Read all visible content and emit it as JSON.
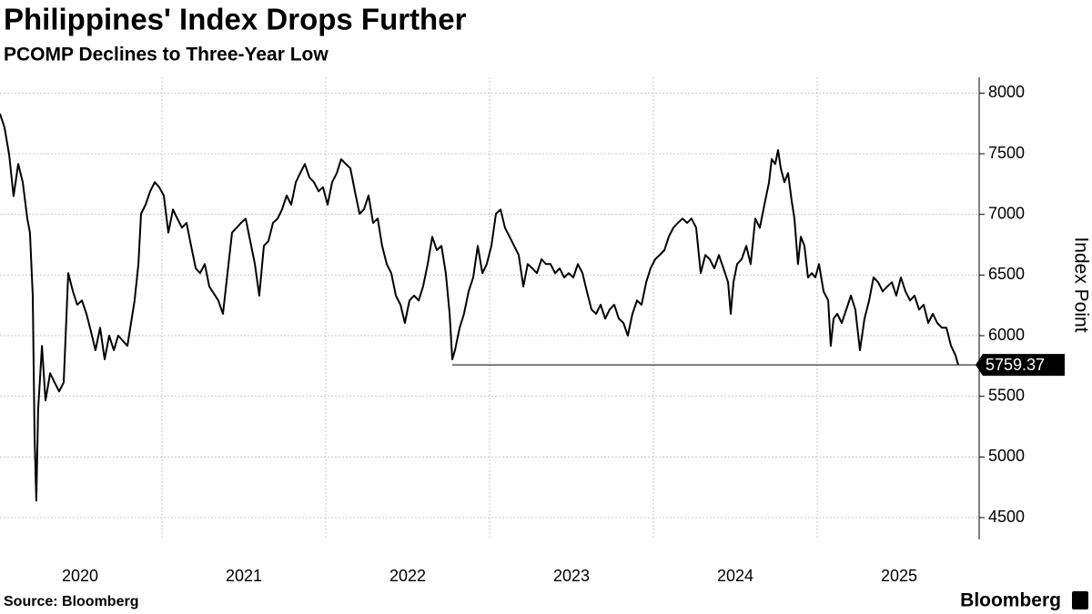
{
  "chart_data": {
    "type": "line",
    "title": "Philippines' Index Drops Further",
    "subtitle": "PCOMP Declines to Three-Year Low",
    "y_label": "Index Point",
    "source": "Source: Bloomberg",
    "brand": "Bloomberg",
    "color": "#000000",
    "grid": true,
    "xlim": [
      2020,
      2026
    ],
    "xgrid": [
      2021,
      2022,
      2023,
      2024,
      2025
    ],
    "xticks": [
      {
        "value": 2020.5,
        "label": "2020"
      },
      {
        "value": 2021.5,
        "label": "2021"
      },
      {
        "value": 2022.5,
        "label": "2022"
      },
      {
        "value": 2023.5,
        "label": "2023"
      },
      {
        "value": 2024.5,
        "label": "2024"
      },
      {
        "value": 2025.5,
        "label": "2025"
      }
    ],
    "ylim": [
      4320,
      8130
    ],
    "yticks": [
      4500,
      5000,
      5500,
      6000,
      6500,
      7000,
      7500,
      8000
    ],
    "x": [
      2020.011,
      2020.039,
      2020.067,
      2020.094,
      2020.122,
      2020.15,
      2020.178,
      2020.194,
      2020.211,
      2020.222,
      2020.233,
      2020.244,
      2020.267,
      2020.289,
      2020.317,
      2020.344,
      2020.372,
      2020.4,
      2020.428,
      2020.456,
      2020.483,
      2020.511,
      2020.539,
      2020.567,
      2020.594,
      2020.622,
      2020.65,
      2020.678,
      2020.706,
      2020.733,
      2020.789,
      2020.833,
      2020.856,
      2020.872,
      2020.9,
      2020.928,
      2020.956,
      2020.983,
      2021.011,
      2021.039,
      2021.067,
      2021.094,
      2021.122,
      2021.15,
      2021.178,
      2021.206,
      2021.233,
      2021.261,
      2021.289,
      2021.344,
      2021.372,
      2021.4,
      2021.428,
      2021.456,
      2021.483,
      2021.511,
      2021.539,
      2021.567,
      2021.594,
      2021.622,
      2021.65,
      2021.678,
      2021.706,
      2021.733,
      2021.761,
      2021.789,
      2021.817,
      2021.844,
      2021.872,
      2021.9,
      2021.928,
      2021.956,
      2021.983,
      2022.011,
      2022.039,
      2022.067,
      2022.094,
      2022.122,
      2022.15,
      2022.178,
      2022.206,
      2022.233,
      2022.261,
      2022.289,
      2022.317,
      2022.344,
      2022.372,
      2022.4,
      2022.428,
      2022.456,
      2022.483,
      2022.511,
      2022.539,
      2022.567,
      2022.594,
      2022.622,
      2022.65,
      2022.678,
      2022.706,
      2022.733,
      2022.756,
      2022.772,
      2022.789,
      2022.817,
      2022.844,
      2022.872,
      2022.9,
      2022.928,
      2022.956,
      2022.983,
      2023.011,
      2023.039,
      2023.067,
      2023.094,
      2023.122,
      2023.15,
      2023.178,
      2023.206,
      2023.233,
      2023.261,
      2023.289,
      2023.317,
      2023.344,
      2023.372,
      2023.4,
      2023.428,
      2023.456,
      2023.483,
      2023.511,
      2023.539,
      2023.567,
      2023.594,
      2023.622,
      2023.65,
      2023.678,
      2023.706,
      2023.733,
      2023.761,
      2023.789,
      2023.817,
      2023.844,
      2023.872,
      2023.9,
      2023.928,
      2023.956,
      2023.983,
      2024.011,
      2024.039,
      2024.067,
      2024.094,
      2024.122,
      2024.15,
      2024.178,
      2024.206,
      2024.233,
      2024.261,
      2024.289,
      2024.317,
      2024.344,
      2024.372,
      2024.4,
      2024.428,
      2024.456,
      2024.472,
      2024.489,
      2024.511,
      2024.539,
      2024.567,
      2024.594,
      2024.622,
      2024.65,
      2024.678,
      2024.706,
      2024.722,
      2024.744,
      2024.761,
      2024.778,
      2024.8,
      2024.822,
      2024.844,
      2024.861,
      2024.883,
      2024.9,
      2024.922,
      2024.944,
      2024.967,
      2024.989,
      2025.011,
      2025.039,
      2025.067,
      2025.083,
      2025.1,
      2025.122,
      2025.15,
      2025.178,
      2025.206,
      2025.233,
      2025.261,
      2025.289,
      2025.317,
      2025.344,
      2025.372,
      2025.4,
      2025.428,
      2025.456,
      2025.483,
      2025.511,
      2025.539,
      2025.567,
      2025.594,
      2025.622,
      2025.65,
      2025.678,
      2025.706,
      2025.733,
      2025.761,
      2025.789,
      2025.817,
      2025.844,
      2025.861
    ],
    "values": [
      7830,
      7715,
      7490,
      7150,
      7415,
      7265,
      6965,
      6850,
      6330,
      5165,
      4640,
      5390,
      5915,
      5465,
      5690,
      5615,
      5540,
      5615,
      6515,
      6365,
      6255,
      6290,
      6180,
      6030,
      5880,
      6065,
      5805,
      6000,
      5880,
      6000,
      5915,
      6290,
      6590,
      7005,
      7080,
      7190,
      7265,
      7225,
      7155,
      6850,
      7040,
      6965,
      6890,
      6930,
      6740,
      6555,
      6515,
      6590,
      6405,
      6290,
      6180,
      6515,
      6850,
      6890,
      6930,
      6965,
      6780,
      6590,
      6330,
      6740,
      6780,
      6930,
      6965,
      7040,
      7155,
      7080,
      7265,
      7340,
      7415,
      7305,
      7265,
      7190,
      7225,
      7080,
      7265,
      7340,
      7455,
      7415,
      7380,
      7190,
      7005,
      7040,
      7155,
      6930,
      6965,
      6740,
      6590,
      6515,
      6330,
      6255,
      6105,
      6290,
      6330,
      6290,
      6405,
      6590,
      6815,
      6705,
      6740,
      6515,
      6180,
      5805,
      5880,
      6065,
      6180,
      6365,
      6480,
      6740,
      6515,
      6590,
      6740,
      7005,
      7040,
      6890,
      6815,
      6740,
      6665,
      6405,
      6590,
      6555,
      6515,
      6630,
      6590,
      6590,
      6515,
      6555,
      6480,
      6515,
      6480,
      6590,
      6515,
      6365,
      6215,
      6180,
      6255,
      6140,
      6215,
      6255,
      6140,
      6105,
      6000,
      6180,
      6290,
      6255,
      6440,
      6555,
      6630,
      6665,
      6705,
      6815,
      6890,
      6930,
      6965,
      6930,
      6965,
      6890,
      6515,
      6665,
      6630,
      6555,
      6665,
      6555,
      6440,
      6180,
      6440,
      6590,
      6630,
      6740,
      6590,
      6965,
      6890,
      7080,
      7265,
      7455,
      7415,
      7530,
      7380,
      7265,
      7340,
      7115,
      6965,
      6590,
      6815,
      6740,
      6480,
      6515,
      6480,
      6590,
      6365,
      6290,
      5915,
      6140,
      6180,
      6105,
      6215,
      6330,
      6215,
      5880,
      6140,
      6290,
      6480,
      6440,
      6365,
      6405,
      6440,
      6330,
      6480,
      6365,
      6290,
      6330,
      6215,
      6255,
      6105,
      6180,
      6105,
      6065,
      6065,
      5915,
      5840,
      5759.37
    ]
  }
}
